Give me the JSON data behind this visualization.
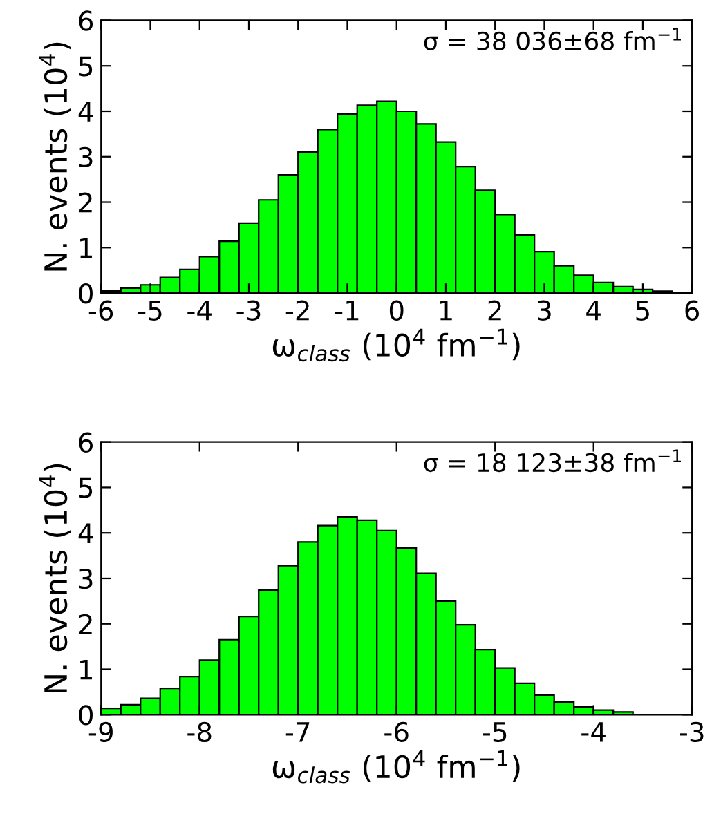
{
  "chart_data": [
    {
      "type": "histogram",
      "xlabel": "ω$_{class}$ (10$^{4}$ fm$^{−1}$)",
      "ylabel": "N. events (10$^{4}$)",
      "annotations": [
        "σ = 38 036±68 fm$^{−1}$"
      ],
      "bins": [
        -6,
        -5.6,
        -5.2,
        -4.8,
        -4.4,
        -4,
        -3.6,
        -3.2,
        -2.8,
        -2.4,
        -2,
        -1.6,
        -1.2,
        -0.8,
        -0.4,
        0,
        0.4,
        0.8,
        1.2,
        1.6,
        2,
        2.4,
        2.8,
        3.2,
        3.6,
        4,
        4.4,
        4.8,
        5.2,
        5.6,
        6
      ],
      "values": [
        0.05,
        0.11,
        0.18,
        0.34,
        0.52,
        0.8,
        1.14,
        1.54,
        2.05,
        2.6,
        3.1,
        3.6,
        3.94,
        4.13,
        4.22,
        4.0,
        3.72,
        3.32,
        2.78,
        2.26,
        1.73,
        1.28,
        0.91,
        0.6,
        0.39,
        0.23,
        0.14,
        0.08,
        0.04,
        null
      ],
      "color": "#00ff00",
      "xlim": [
        -6,
        6
      ],
      "ylim": [
        0,
        6
      ],
      "xticks": [
        -6,
        -5,
        -4,
        -3,
        -2,
        -1,
        0,
        1,
        2,
        3,
        4,
        5,
        6
      ],
      "yticks": [
        0,
        1,
        2,
        3,
        4,
        5,
        6
      ],
      "grid": false
    },
    {
      "type": "histogram",
      "xlabel": "ω$_{class}$ (10$^{4}$ fm$^{−1}$)",
      "ylabel": "N. events (10$^{4}$)",
      "annotations": [
        "σ = 18 123±38 fm$^{−1}$"
      ],
      "bins": [
        -9,
        -8.8,
        -8.6,
        -8.4,
        -8.2,
        -8,
        -7.8,
        -7.6,
        -7.4,
        -7.2,
        -7,
        -6.8,
        -6.6,
        -6.4,
        -6.2,
        -6,
        -5.8,
        -5.6,
        -5.4,
        -5.2,
        -5,
        -4.8,
        -4.6,
        -4.4,
        -4.2,
        -4,
        -3.8,
        -3.6,
        -3.4,
        -3.2,
        -3
      ],
      "values": [
        0.14,
        0.22,
        0.36,
        0.58,
        0.84,
        1.2,
        1.65,
        2.16,
        2.74,
        3.28,
        3.8,
        4.16,
        4.35,
        4.28,
        4.05,
        3.67,
        3.11,
        2.5,
        1.98,
        1.43,
        1.03,
        0.69,
        0.43,
        0.28,
        0.17,
        0.1,
        0.06,
        null,
        null,
        null
      ],
      "color": "#00ff00",
      "xlim": [
        -9,
        -3
      ],
      "ylim": [
        0,
        6
      ],
      "xticks": [
        -9,
        -8,
        -7,
        -6,
        -5,
        -4,
        -3
      ],
      "yticks": [
        0,
        1,
        2,
        3,
        4,
        5,
        6
      ],
      "grid": false
    }
  ]
}
